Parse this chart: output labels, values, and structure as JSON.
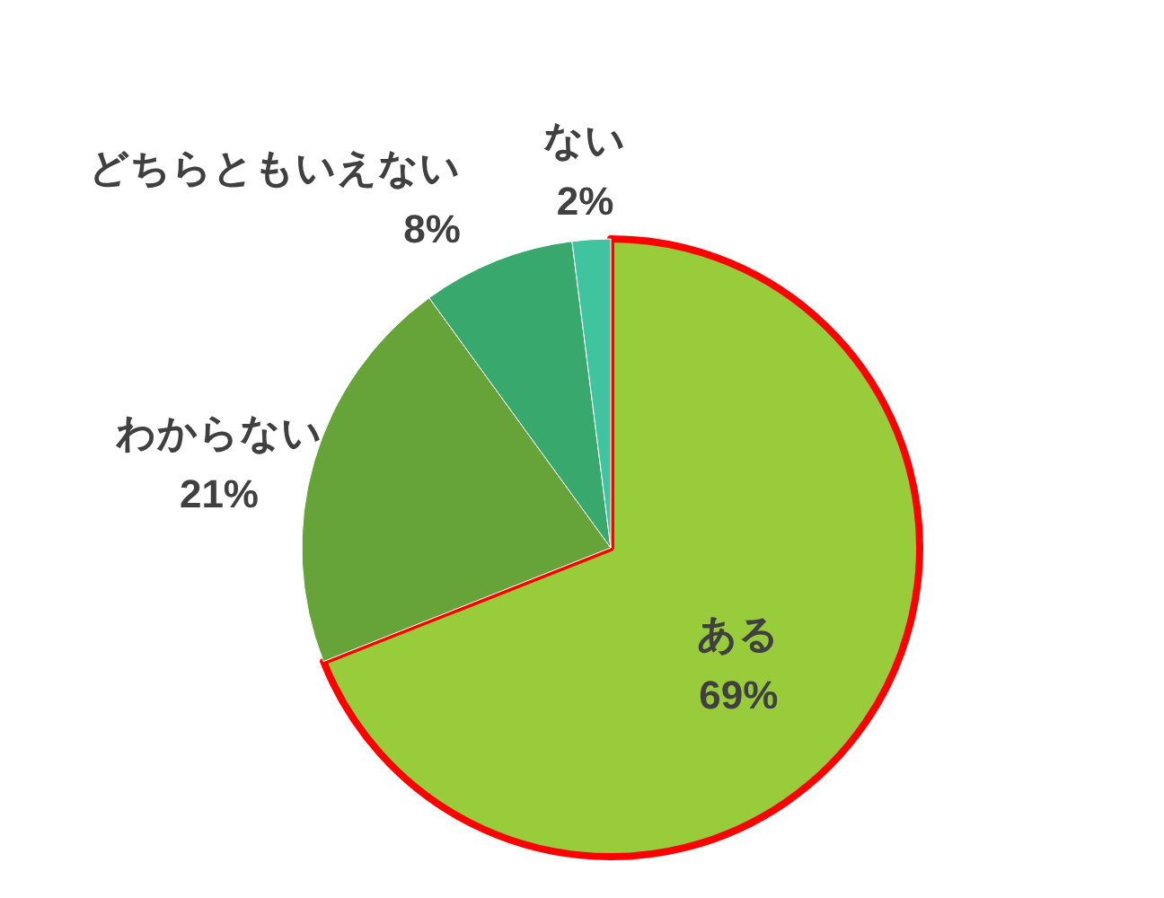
{
  "chart_data": {
    "type": "pie",
    "categories": [
      "ある",
      "わからない",
      "どちらともいえない",
      "ない"
    ],
    "values": [
      69,
      21,
      8,
      2
    ],
    "colors": [
      "#99cc3a",
      "#66a338",
      "#38a86c",
      "#40c4a0"
    ],
    "value_labels": [
      "69%",
      "21%",
      "8%",
      "2%"
    ]
  }
}
